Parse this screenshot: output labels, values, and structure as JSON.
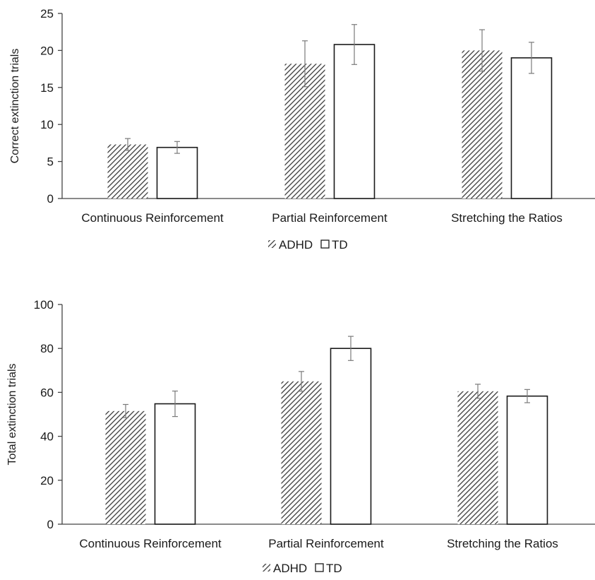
{
  "chart_data": [
    {
      "type": "bar",
      "categories": [
        "Continuous Reinforcement",
        "Partial Reinforcement",
        "Stretching the Ratios"
      ],
      "series": [
        {
          "name": "ADHD",
          "values": [
            7.3,
            18.2,
            20.0
          ],
          "error": [
            0.8,
            3.1,
            2.8
          ],
          "pattern": "hatched"
        },
        {
          "name": "TD",
          "values": [
            6.9,
            20.8,
            19.0
          ],
          "error": [
            0.8,
            2.7,
            2.1
          ],
          "pattern": "open"
        }
      ],
      "ylabel": "Correct extinction trials",
      "ylim": [
        0,
        25
      ],
      "yticks": [
        0,
        5,
        10,
        15,
        20,
        25
      ],
      "grid": false,
      "legend_position": "bottom"
    },
    {
      "type": "bar",
      "categories": [
        "Continuous Reinforcement",
        "Partial Reinforcement",
        "Stretching the Ratios"
      ],
      "series": [
        {
          "name": "ADHD",
          "values": [
            51.5,
            65.0,
            60.5
          ],
          "error": [
            3.0,
            4.5,
            3.2
          ],
          "pattern": "hatched"
        },
        {
          "name": "TD",
          "values": [
            54.8,
            80.0,
            58.3
          ],
          "error": [
            5.8,
            5.5,
            3.0
          ],
          "pattern": "open"
        }
      ],
      "ylabel": "Total extinction trials",
      "ylim": [
        0,
        100
      ],
      "yticks": [
        0,
        20,
        40,
        60,
        80,
        100
      ],
      "grid": false,
      "legend_position": "bottom"
    }
  ],
  "colors": {
    "axis": "#444444",
    "bar_stroke": "#1a1a1a",
    "hatch": "#3a3a3a",
    "error_bar": "#7a7a7a"
  }
}
